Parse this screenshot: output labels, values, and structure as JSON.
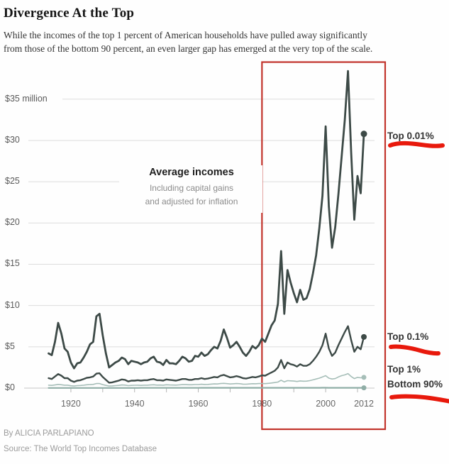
{
  "header": {
    "title": "Divergence At the Top",
    "subtitle_line1": "While the incomes of the top 1 percent of American households have pulled away significantly",
    "subtitle_line2": "from those of the bottom 90 percent, an even larger gap has emerged at the very top of the scale."
  },
  "chart_data": {
    "type": "line",
    "title": "Average incomes",
    "note_line1": "Including capital gains",
    "note_line2": "and adjusted for inflation",
    "unit": "millions of dollars per year",
    "x_range": [
      1913,
      2012
    ],
    "ylim": [
      0,
      38.5
    ],
    "grid": "horizontal",
    "legend_position": "right-inline",
    "y_ticks": [
      {
        "label": "$35 million",
        "value": 35
      },
      {
        "label": "$30",
        "value": 30
      },
      {
        "label": "$25",
        "value": 25
      },
      {
        "label": "$20",
        "value": 20
      },
      {
        "label": "$15",
        "value": 15
      },
      {
        "label": "$10",
        "value": 10
      },
      {
        "label": "$5",
        "value": 5
      },
      {
        "label": "$0",
        "value": 0
      }
    ],
    "x_ticks": [
      {
        "label": "1920",
        "value": 1920
      },
      {
        "label": "1940",
        "value": 1940
      },
      {
        "label": "1960",
        "value": 1960
      },
      {
        "label": "1980",
        "value": 1980
      },
      {
        "label": "2000",
        "value": 2000
      },
      {
        "label": "2012",
        "value": 2012
      }
    ],
    "x_minor_ticks": [
      1920,
      1930,
      1940,
      1950,
      1960,
      1970,
      1980,
      1990,
      2000,
      2010
    ],
    "highlight": {
      "shape": "rectangle",
      "from_year": 1980,
      "to_year": 2012,
      "color": "#c2342c"
    },
    "underline_color": "#e8190c",
    "series": [
      {
        "name": "Top 0.01%",
        "color": "#3d4a47",
        "underlined": true,
        "end_dot": true,
        "values": [
          4.2,
          4.0,
          5.6,
          7.9,
          6.6,
          4.8,
          4.4,
          3.1,
          2.4,
          3.0,
          3.1,
          3.7,
          4.4,
          5.3,
          5.6,
          8.7,
          9.0,
          6.4,
          4.2,
          2.5,
          2.8,
          3.1,
          3.3,
          3.7,
          3.5,
          2.9,
          3.3,
          3.2,
          3.1,
          2.9,
          3.1,
          3.2,
          3.6,
          3.8,
          3.2,
          3.1,
          2.8,
          3.4,
          3.0,
          3.0,
          2.9,
          3.3,
          3.8,
          3.6,
          3.2,
          3.3,
          3.9,
          3.8,
          4.3,
          3.9,
          4.1,
          4.6,
          5.0,
          4.8,
          5.7,
          7.1,
          6.1,
          4.9,
          5.2,
          5.6,
          5.0,
          4.3,
          3.9,
          4.4,
          5.1,
          4.8,
          5.2,
          6.0,
          5.6,
          6.6,
          7.6,
          8.2,
          10.2,
          16.6,
          9.0,
          14.3,
          12.8,
          11.5,
          10.4,
          11.9,
          10.7,
          10.9,
          12.0,
          13.9,
          16.1,
          19.4,
          23.3,
          31.7,
          22.0,
          17.0,
          19.5,
          23.5,
          28.0,
          32.5,
          38.4,
          28.5,
          20.4,
          25.7,
          23.6,
          30.8
        ]
      },
      {
        "name": "Top 0.1%",
        "color": "#3d4a47",
        "underlined": true,
        "end_dot": true,
        "values": [
          1.2,
          1.1,
          1.4,
          1.7,
          1.5,
          1.2,
          1.2,
          0.9,
          0.75,
          0.9,
          0.95,
          1.1,
          1.25,
          1.3,
          1.4,
          1.75,
          1.8,
          1.35,
          1.0,
          0.65,
          0.7,
          0.8,
          0.9,
          1.05,
          1.0,
          0.8,
          0.9,
          0.9,
          0.95,
          0.9,
          0.95,
          0.95,
          1.05,
          1.1,
          0.95,
          0.95,
          0.9,
          1.05,
          1.0,
          0.95,
          0.9,
          1.0,
          1.1,
          1.1,
          1.0,
          1.0,
          1.1,
          1.1,
          1.2,
          1.1,
          1.15,
          1.25,
          1.35,
          1.3,
          1.5,
          1.6,
          1.45,
          1.3,
          1.35,
          1.45,
          1.35,
          1.2,
          1.15,
          1.25,
          1.35,
          1.3,
          1.4,
          1.55,
          1.5,
          1.7,
          1.9,
          2.1,
          2.5,
          3.4,
          2.4,
          3.1,
          2.9,
          2.8,
          2.6,
          2.9,
          2.7,
          2.7,
          2.9,
          3.3,
          3.8,
          4.4,
          5.2,
          6.6,
          4.8,
          3.9,
          4.3,
          5.2,
          6.0,
          6.8,
          7.5,
          5.8,
          4.4,
          5.0,
          4.7,
          6.2
        ]
      },
      {
        "name": "Top 1%",
        "color": "#a6beb8",
        "underlined": false,
        "end_dot": true,
        "values": [
          0.35,
          0.33,
          0.38,
          0.45,
          0.4,
          0.35,
          0.35,
          0.28,
          0.25,
          0.3,
          0.32,
          0.35,
          0.4,
          0.42,
          0.45,
          0.55,
          0.55,
          0.42,
          0.33,
          0.25,
          0.27,
          0.3,
          0.33,
          0.38,
          0.36,
          0.3,
          0.33,
          0.34,
          0.35,
          0.33,
          0.35,
          0.35,
          0.38,
          0.4,
          0.36,
          0.37,
          0.35,
          0.4,
          0.38,
          0.37,
          0.36,
          0.39,
          0.42,
          0.42,
          0.4,
          0.4,
          0.43,
          0.43,
          0.46,
          0.44,
          0.45,
          0.48,
          0.51,
          0.5,
          0.55,
          0.58,
          0.54,
          0.5,
          0.52,
          0.55,
          0.53,
          0.48,
          0.47,
          0.5,
          0.53,
          0.52,
          0.55,
          0.55,
          0.54,
          0.58,
          0.62,
          0.67,
          0.73,
          0.95,
          0.75,
          0.9,
          0.88,
          0.85,
          0.8,
          0.87,
          0.83,
          0.84,
          0.9,
          1.0,
          1.1,
          1.2,
          1.35,
          1.5,
          1.2,
          1.1,
          1.15,
          1.35,
          1.5,
          1.6,
          1.75,
          1.4,
          1.15,
          1.3,
          1.25,
          1.3
        ]
      },
      {
        "name": "Bottom 90%",
        "color": "#8fada6",
        "underlined": true,
        "end_dot": true,
        "values": [
          0.015,
          0.015,
          0.016,
          0.017,
          0.016,
          0.015,
          0.016,
          0.015,
          0.014,
          0.016,
          0.018,
          0.018,
          0.019,
          0.019,
          0.02,
          0.02,
          0.02,
          0.018,
          0.016,
          0.013,
          0.013,
          0.014,
          0.015,
          0.017,
          0.017,
          0.016,
          0.018,
          0.019,
          0.021,
          0.022,
          0.023,
          0.024,
          0.024,
          0.023,
          0.022,
          0.023,
          0.023,
          0.025,
          0.026,
          0.026,
          0.027,
          0.027,
          0.028,
          0.029,
          0.029,
          0.028,
          0.03,
          0.03,
          0.031,
          0.032,
          0.032,
          0.033,
          0.034,
          0.035,
          0.035,
          0.036,
          0.037,
          0.037,
          0.036,
          0.037,
          0.037,
          0.035,
          0.034,
          0.035,
          0.035,
          0.036,
          0.036,
          0.034,
          0.034,
          0.033,
          0.033,
          0.034,
          0.034,
          0.035,
          0.035,
          0.036,
          0.036,
          0.035,
          0.034,
          0.034,
          0.034,
          0.035,
          0.035,
          0.036,
          0.037,
          0.038,
          0.039,
          0.039,
          0.037,
          0.036,
          0.036,
          0.037,
          0.037,
          0.038,
          0.038,
          0.035,
          0.032,
          0.032,
          0.031,
          0.031
        ]
      }
    ]
  },
  "footer": {
    "byline": "By ALICIA PARLAPIANO",
    "source": "Source: The World Top Incomes Database"
  }
}
